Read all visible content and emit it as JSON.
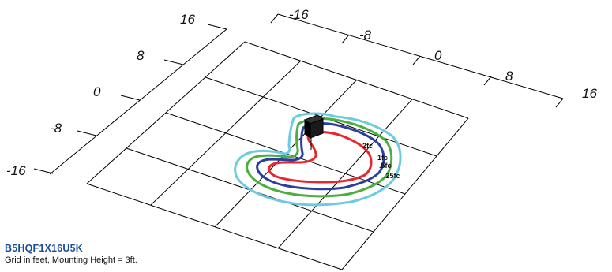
{
  "x_axis_labels": [
    "-16",
    "-8",
    "0",
    "8",
    "16"
  ],
  "y_axis_labels": [
    "16",
    "8",
    "0",
    "-8",
    "-16"
  ],
  "isolines": [
    {
      "label": "2fc",
      "color": "#e8262d"
    },
    {
      "label": "1fc",
      "color": "#2a3f9e"
    },
    {
      "label": ".5fc",
      "color": "#4cae3f"
    },
    {
      "label": ".25fc",
      "color": "#6ccbe0"
    }
  ],
  "caption": {
    "model": "B5HQF1X16U5K",
    "note": "Grid in feet, Mounting Height = 3ft."
  }
}
